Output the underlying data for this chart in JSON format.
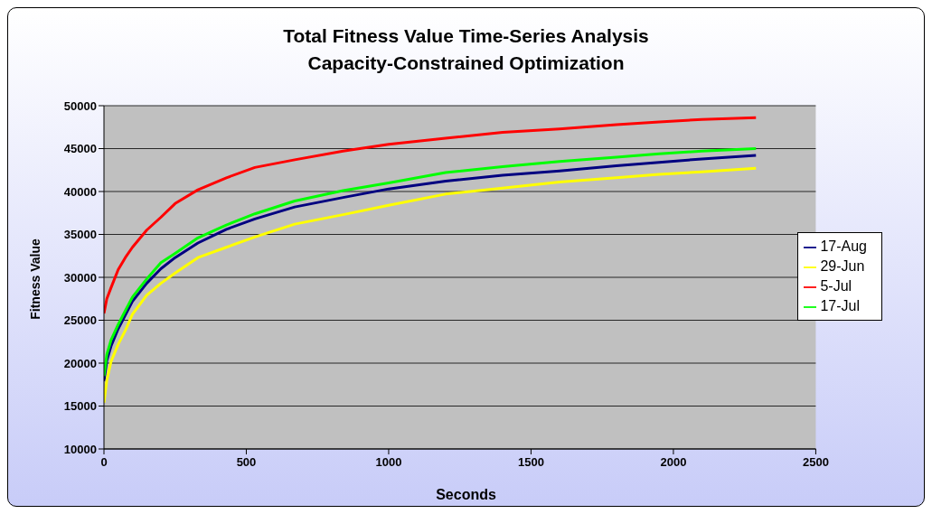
{
  "chart_data": {
    "type": "line",
    "title": "Total Fitness Value Time-Series Analysis\nCapacity-Constrained Optimization",
    "xlabel": "Seconds",
    "ylabel": "Fitness Value",
    "x": [
      0,
      10,
      25,
      50,
      75,
      100,
      150,
      200,
      250,
      330,
      430,
      530,
      670,
      840,
      1000,
      1200,
      1400,
      1600,
      1800,
      1950,
      2100,
      2290
    ],
    "series": [
      {
        "name": "17-Aug",
        "color": "#000080",
        "values": [
          17900,
          20300,
          22000,
          24000,
          25600,
          27200,
          29300,
          31000,
          32300,
          34000,
          35600,
          36800,
          38200,
          39300,
          40300,
          41200,
          41900,
          42400,
          43000,
          43400,
          43800,
          44200
        ]
      },
      {
        "name": "29-Jun",
        "color": "#ffff00",
        "values": [
          15400,
          18000,
          20200,
          22200,
          23800,
          25700,
          27900,
          29300,
          30500,
          32300,
          33500,
          34700,
          36200,
          37300,
          38400,
          39700,
          40400,
          41100,
          41600,
          42000,
          42300,
          42700
        ]
      },
      {
        "name": "5-Jul",
        "color": "#ff0000",
        "values": [
          25800,
          27500,
          28800,
          30900,
          32300,
          33500,
          35500,
          37000,
          38600,
          40200,
          41600,
          42800,
          43700,
          44700,
          45500,
          46200,
          46900,
          47300,
          47800,
          48100,
          48400,
          48600
        ]
      },
      {
        "name": "17-Jul",
        "color": "#00ff00",
        "values": [
          18500,
          21000,
          22700,
          24500,
          26100,
          27700,
          29800,
          31700,
          32800,
          34600,
          36100,
          37400,
          38900,
          40100,
          41000,
          42200,
          42900,
          43500,
          44000,
          44400,
          44700,
          45000
        ]
      }
    ],
    "xlim": [
      0,
      2500
    ],
    "xticks": [
      0,
      500,
      1000,
      1500,
      2000,
      2500
    ],
    "ylim": [
      10000,
      50000
    ],
    "yticks": [
      10000,
      15000,
      20000,
      25000,
      30000,
      35000,
      40000,
      45000,
      50000
    ],
    "grid": "y",
    "legend": "right"
  }
}
